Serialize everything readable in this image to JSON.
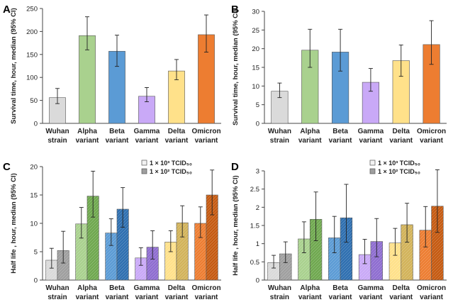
{
  "chart_data": [
    {
      "panel": "A",
      "type": "bar",
      "ylabel": "Survival time, hour, median (95% CI)",
      "ylim": [
        0,
        250
      ],
      "yticks": [
        0,
        50,
        100,
        150,
        200,
        250
      ],
      "categories": [
        [
          "Wuhan",
          "strain"
        ],
        [
          "Alpha",
          "variant"
        ],
        [
          "Beta",
          "variant"
        ],
        [
          "Gamma",
          "variant"
        ],
        [
          "Delta",
          "variant"
        ],
        [
          "Omicron",
          "variant"
        ]
      ],
      "series": [
        {
          "name": "",
          "values": [
            56,
            191,
            157,
            59,
            114,
            193
          ],
          "lower": [
            43,
            160,
            124,
            47,
            95,
            155
          ],
          "upper": [
            76,
            232,
            192,
            78,
            139,
            236
          ]
        }
      ]
    },
    {
      "panel": "B",
      "type": "bar",
      "ylabel": "Survival time, hour, median (95% CI)",
      "ylim": [
        0,
        30
      ],
      "yticks": [
        0,
        5,
        10,
        15,
        20,
        25,
        30
      ],
      "categories": [
        [
          "Wuhan",
          "strain"
        ],
        [
          "Alpha",
          "variant"
        ],
        [
          "Beta",
          "variant"
        ],
        [
          "Gamma",
          "variant"
        ],
        [
          "Delta",
          "variant"
        ],
        [
          "Omicron",
          "variant"
        ]
      ],
      "series": [
        {
          "name": "",
          "values": [
            8.6,
            19.6,
            19.1,
            11.0,
            16.8,
            21.1
          ],
          "lower": [
            6.9,
            15.0,
            14.0,
            8.6,
            12.6,
            15.8
          ],
          "upper": [
            10.8,
            25.2,
            25.2,
            14.7,
            21.0,
            27.5
          ]
        }
      ]
    },
    {
      "panel": "C",
      "type": "bar",
      "ylabel": "Half life , hour, median (95% CI)",
      "ylim": [
        0,
        20
      ],
      "yticks": [
        0,
        5,
        10,
        15,
        20
      ],
      "categories": [
        [
          "Wuhan",
          "strain"
        ],
        [
          "Alpha",
          "variant"
        ],
        [
          "Beta",
          "variant"
        ],
        [
          "Gamma",
          "variant"
        ],
        [
          "Delta",
          "variant"
        ],
        [
          "Omicron",
          "variant"
        ]
      ],
      "legend": [
        "1 × 10³ TCID₅₀",
        "1 × 10² TCID₅₀"
      ],
      "series": [
        {
          "name": "1 × 10³ TCID₅₀",
          "values": [
            3.5,
            9.9,
            8.3,
            3.9,
            6.7,
            10.0
          ],
          "lower": [
            2.1,
            7.4,
            6.1,
            2.6,
            5.0,
            7.5
          ],
          "upper": [
            5.6,
            12.8,
            10.8,
            5.7,
            8.7,
            12.9
          ]
        },
        {
          "name": "1 × 10² TCID₅₀",
          "values": [
            5.2,
            14.8,
            12.5,
            5.8,
            10.1,
            15.0
          ],
          "lower": [
            3.0,
            11.1,
            9.3,
            3.7,
            7.6,
            11.5
          ],
          "upper": [
            8.6,
            19.2,
            16.3,
            8.7,
            13.1,
            19.4
          ]
        }
      ]
    },
    {
      "panel": "D",
      "type": "bar",
      "ylabel": "Half life , hour, median (95% CI)",
      "ylim": [
        0,
        3
      ],
      "yticks": [
        0,
        0.5,
        1,
        1.5,
        2,
        2.5,
        3
      ],
      "categories": [
        [
          "Wuhan",
          "strain"
        ],
        [
          "Alpha",
          "variant"
        ],
        [
          "Beta",
          "variant"
        ],
        [
          "Gamma",
          "variant"
        ],
        [
          "Delta",
          "variant"
        ],
        [
          "Omicron",
          "variant"
        ]
      ],
      "legend": [
        "1 × 10³ TCID₅₀",
        "1 × 10² TCID₅₀"
      ],
      "series": [
        {
          "name": "1 × 10³ TCID₅₀",
          "values": [
            0.48,
            1.13,
            1.16,
            0.7,
            1.02,
            1.37
          ],
          "lower": [
            0.33,
            0.75,
            0.75,
            0.45,
            0.68,
            0.91
          ],
          "upper": [
            0.68,
            1.6,
            1.75,
            1.12,
            1.42,
            2.02
          ]
        },
        {
          "name": "1 × 10² TCID₅₀",
          "values": [
            0.72,
            1.67,
            1.71,
            1.06,
            1.52,
            2.03
          ],
          "lower": [
            0.48,
            1.08,
            1.04,
            0.64,
            1.04,
            1.31
          ],
          "upper": [
            1.05,
            2.42,
            2.63,
            1.69,
            2.11,
            3.03
          ]
        }
      ]
    }
  ],
  "colors": {
    "light": [
      "#dadada",
      "#a9d18e",
      "#5b9bd5",
      "#c9a9f7",
      "#ffe18a",
      "#ed7d31"
    ],
    "dark": [
      "#9f9f9f",
      "#6fa84f",
      "#2e6fb0",
      "#8e6dd0",
      "#d2b35a",
      "#c55a11"
    ]
  }
}
